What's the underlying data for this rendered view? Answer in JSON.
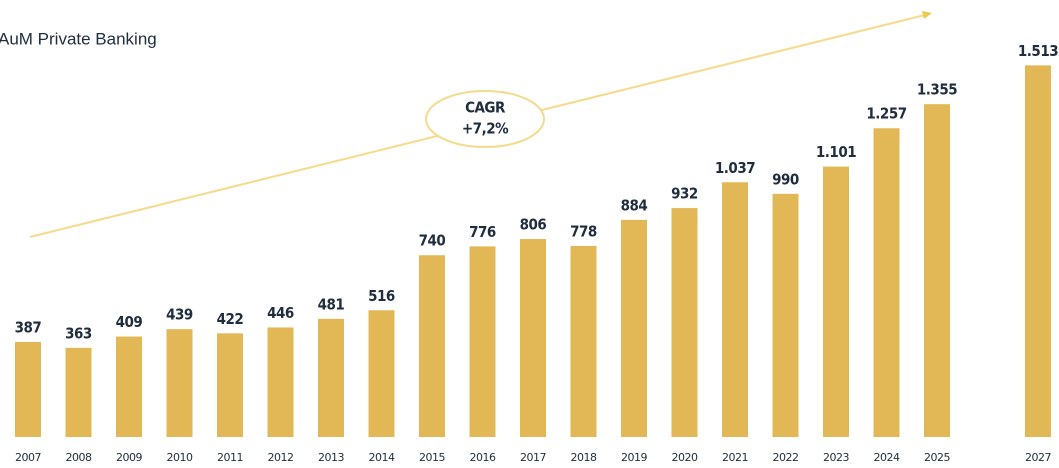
{
  "chart_data": {
    "type": "bar",
    "title": "AuM Private Banking",
    "annotation": [
      "CAGR",
      "+7,2%"
    ],
    "categories": [
      "2007",
      "2008",
      "2009",
      "2010",
      "2011",
      "2012",
      "2013",
      "2014",
      "2015",
      "2016",
      "2017",
      "2018",
      "2019",
      "2020",
      "2021",
      "2022",
      "2023",
      "2024",
      "2025",
      null,
      "2027"
    ],
    "values": [
      387,
      363,
      409,
      439,
      422,
      446,
      481,
      516,
      740,
      776,
      806,
      778,
      884,
      932,
      1037,
      990,
      1101,
      1257,
      1355,
      null,
      1513
    ],
    "value_labels": [
      "387",
      "363",
      "409",
      "439",
      "422",
      "446",
      "481",
      "516",
      "740",
      "776",
      "806",
      "778",
      "884",
      "932",
      "1.037",
      "990",
      "1.101",
      "1.257",
      "1.355",
      null,
      "1.513"
    ],
    "color": "#e2b857",
    "ylim": [
      0,
      1600
    ]
  }
}
